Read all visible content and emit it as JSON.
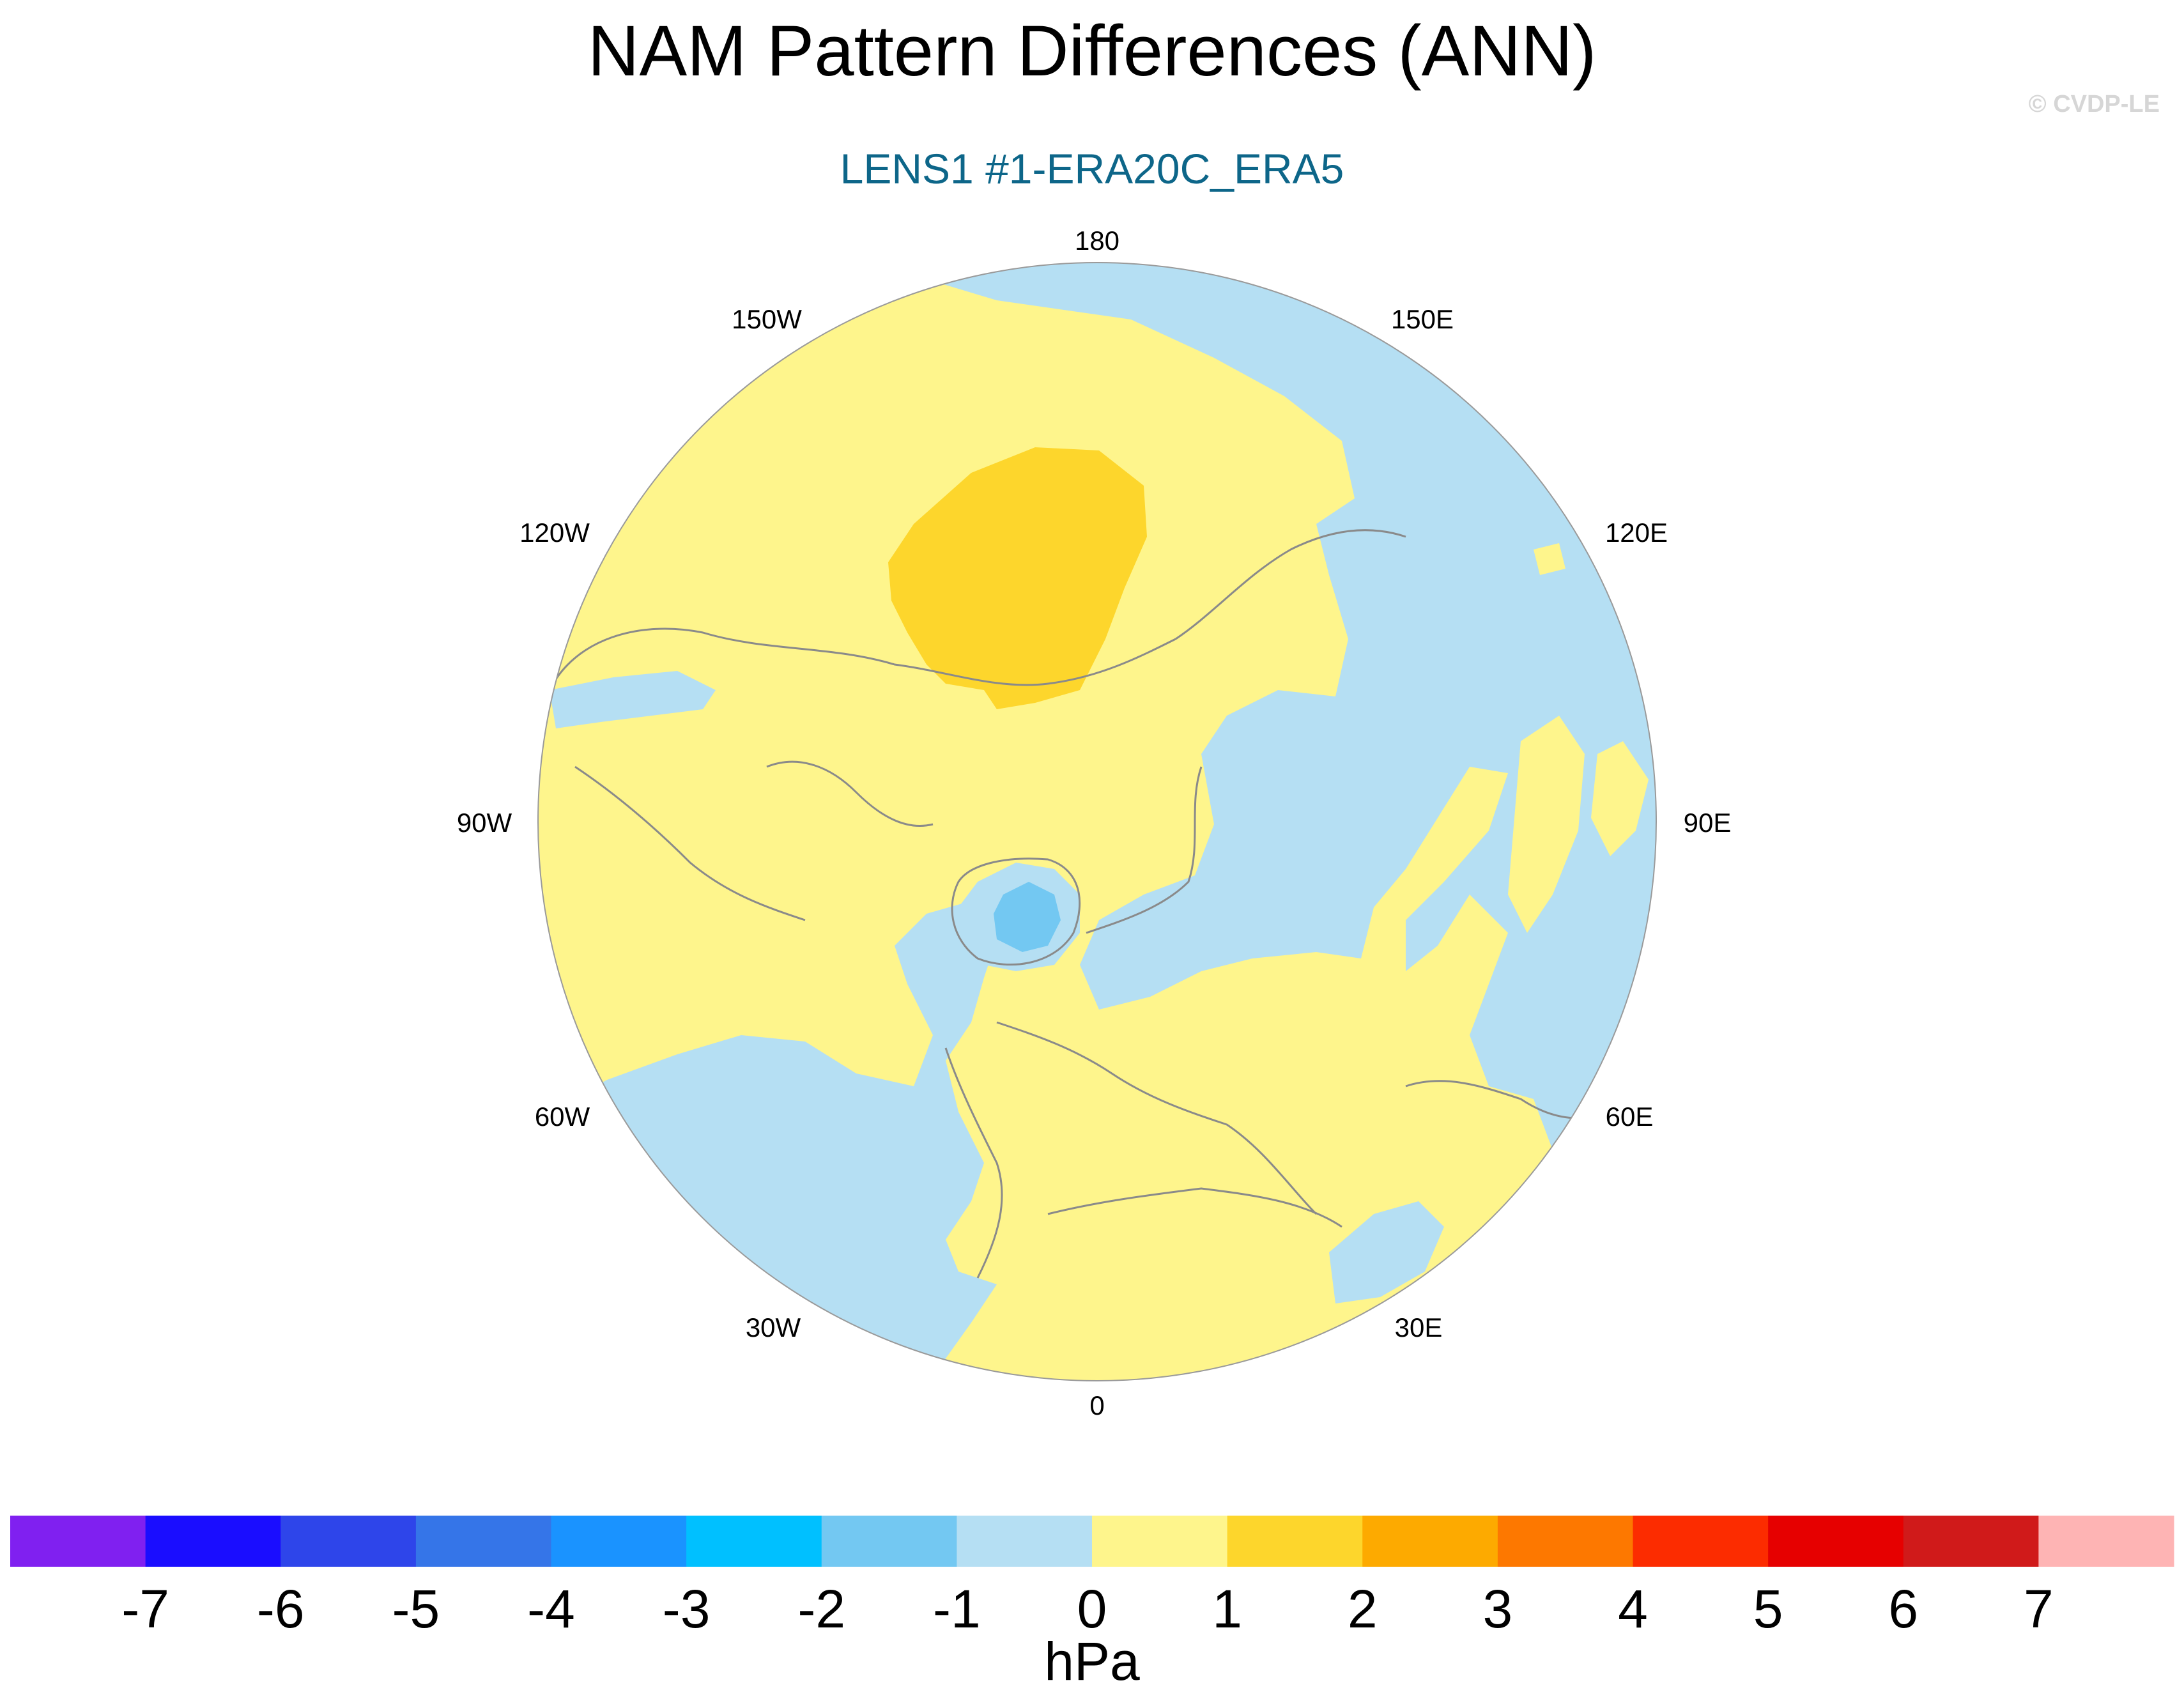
{
  "title": "NAM Pattern Differences (ANN)",
  "subtitle": "LENS1 #1-ERA20C_ERA5",
  "credit": "© CVDP-LE",
  "longitude_labels": {
    "lon_180": "180",
    "lon_150w": "150W",
    "lon_150e": "150E",
    "lon_120w": "120W",
    "lon_120e": "120E",
    "lon_90w": "90W",
    "lon_90e": "90E",
    "lon_60w": "60W",
    "lon_60e": "60E",
    "lon_30w": "30W",
    "lon_30e": "30E",
    "lon_0": "0"
  },
  "colorbar": {
    "units": "hPa",
    "ticks": [
      "-7",
      "-6",
      "-5",
      "-4",
      "-3",
      "-2",
      "-1",
      "0",
      "1",
      "2",
      "3",
      "4",
      "5",
      "6",
      "7"
    ],
    "colors": [
      "#8020f0",
      "#1a0dff",
      "#2e45ea",
      "#3575e8",
      "#1a93ff",
      "#00c0ff",
      "#73c8f2",
      "#b5dff3",
      "#fef58c",
      "#fdd62c",
      "#fdaa00",
      "#fd7800",
      "#fc2c00",
      "#e60000",
      "#d01a1a",
      "#feb4b4"
    ]
  },
  "field_colors": {
    "diff_neg1_0": "#b5dff3",
    "diff_neg2_neg1": "#73c8f2",
    "diff_0_1": "#fef58c",
    "diff_1_2": "#fdd62c"
  }
}
